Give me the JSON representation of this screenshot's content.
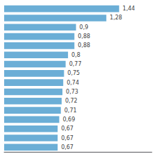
{
  "chart_data": {
    "type": "bar",
    "orientation": "horizontal",
    "categories": [
      null,
      null,
      null,
      null,
      null,
      null,
      null,
      null,
      null,
      null,
      null,
      null,
      null,
      null,
      null,
      null
    ],
    "values": [
      1.44,
      1.28,
      0.9,
      0.88,
      0.88,
      0.8,
      0.77,
      0.75,
      0.74,
      0.73,
      0.72,
      0.71,
      0.69,
      0.67,
      0.67,
      0.67
    ],
    "value_labels": [
      "1,44",
      "1,28",
      "0,9",
      "0,88",
      "0,88",
      "0,8",
      "0,77",
      "0,75",
      "0,74",
      "0,73",
      "0,72",
      "0,71",
      "0,69",
      "0,67",
      "0,67",
      "0,67"
    ],
    "data_labels": true,
    "color": "#6BAED6",
    "xlim": [
      0,
      1.85
    ],
    "tick_labels": false,
    "grid": false
  }
}
